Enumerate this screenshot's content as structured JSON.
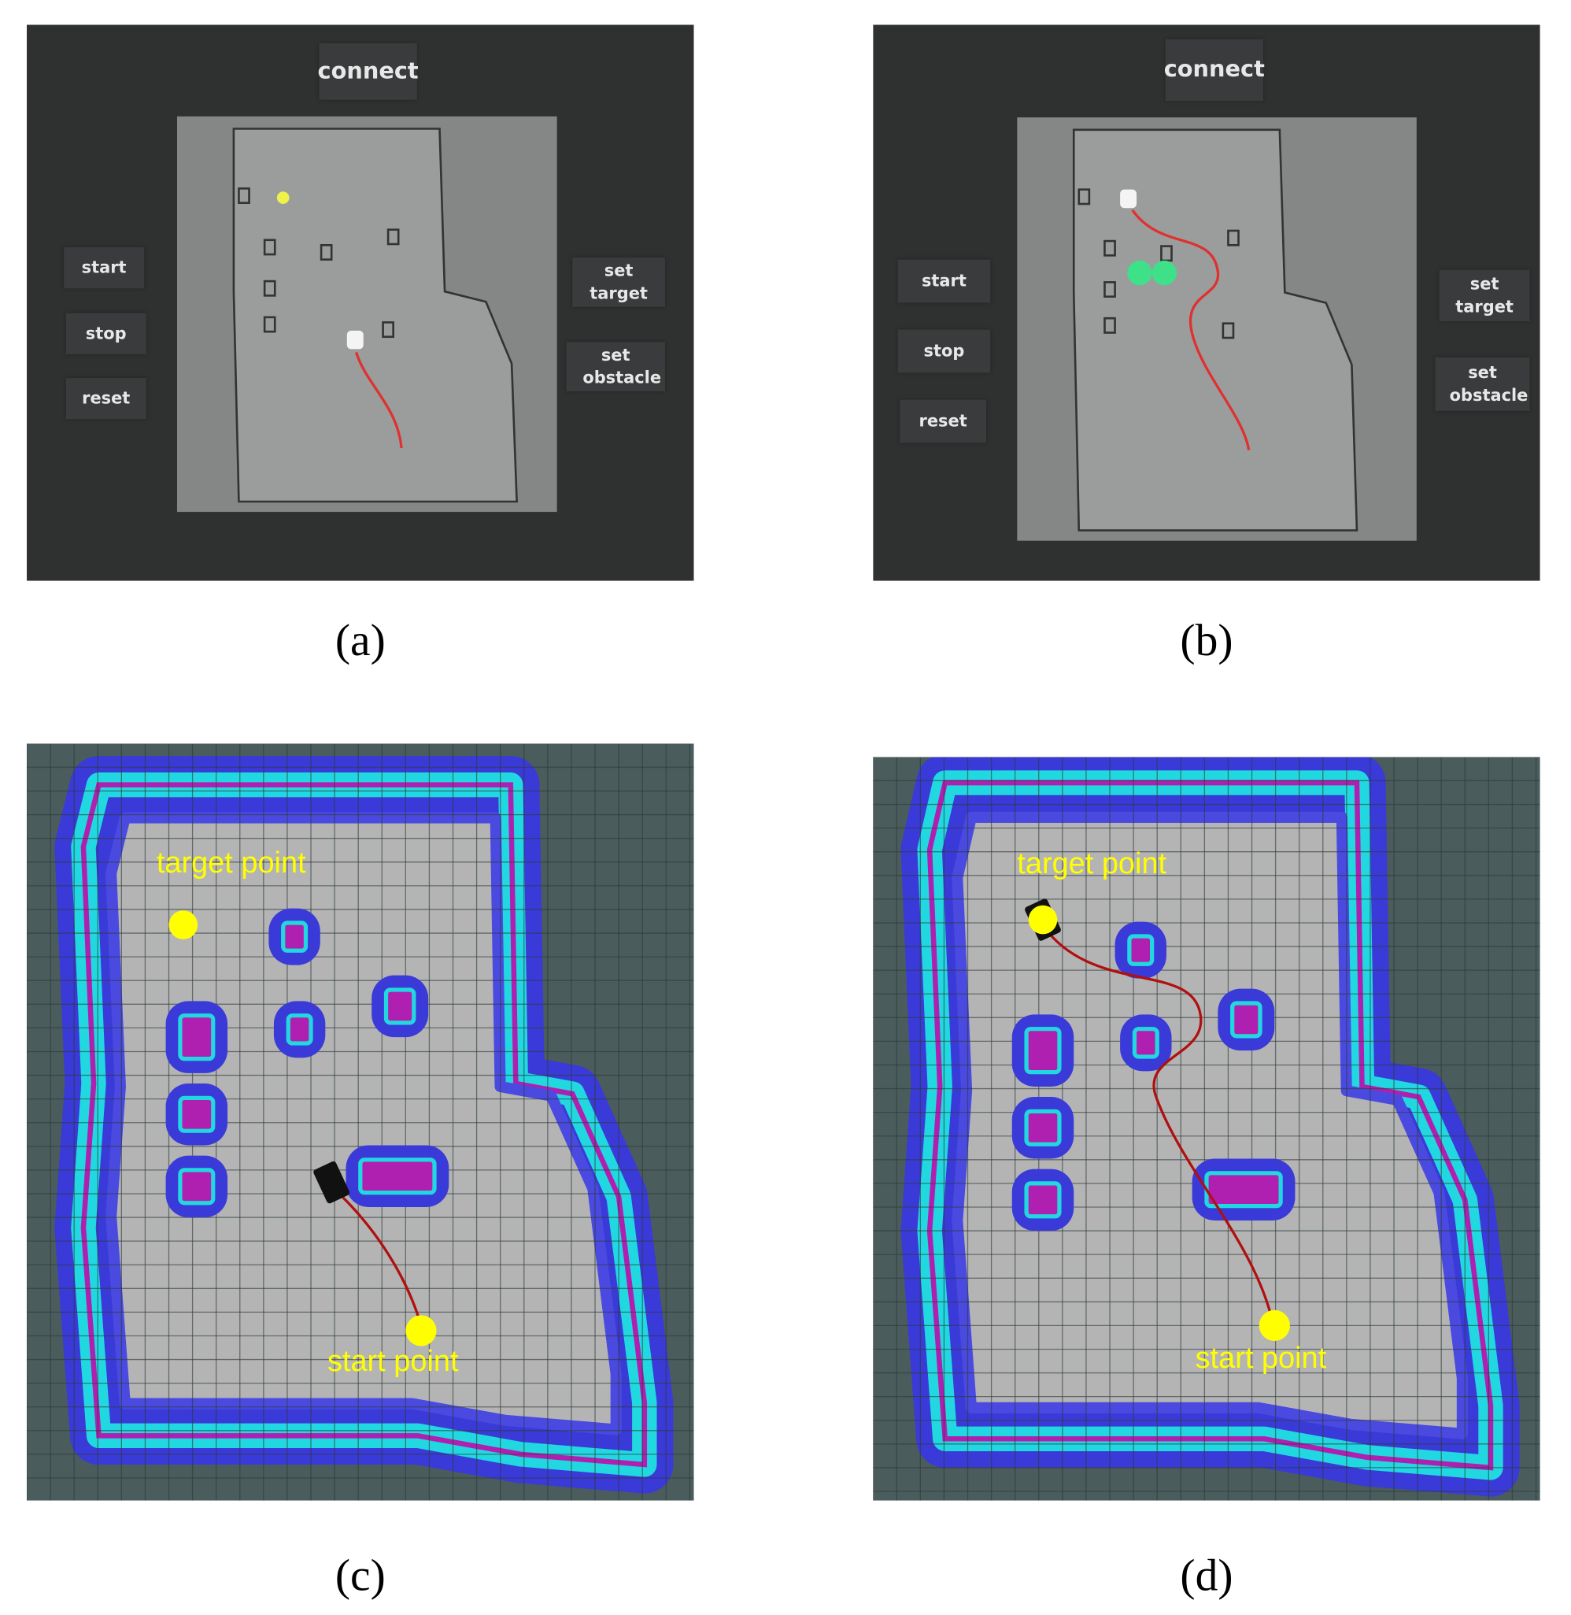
{
  "panels": [
    {
      "caption": "(a)",
      "connect": "connect",
      "start": "start",
      "stop": "stop",
      "reset": "reset",
      "set_target": "set target",
      "set_obstacle": "set obstacle"
    },
    {
      "caption": "(b)",
      "connect": "connect",
      "start": "start",
      "stop": "stop",
      "reset": "reset",
      "set_target": "set target",
      "set_obstacle": "set obstacle"
    },
    {
      "caption": "(c)",
      "target_label": "target point",
      "start_label": "start point"
    },
    {
      "caption": "(d)",
      "target_label": "target point",
      "start_label": "start point"
    }
  ]
}
